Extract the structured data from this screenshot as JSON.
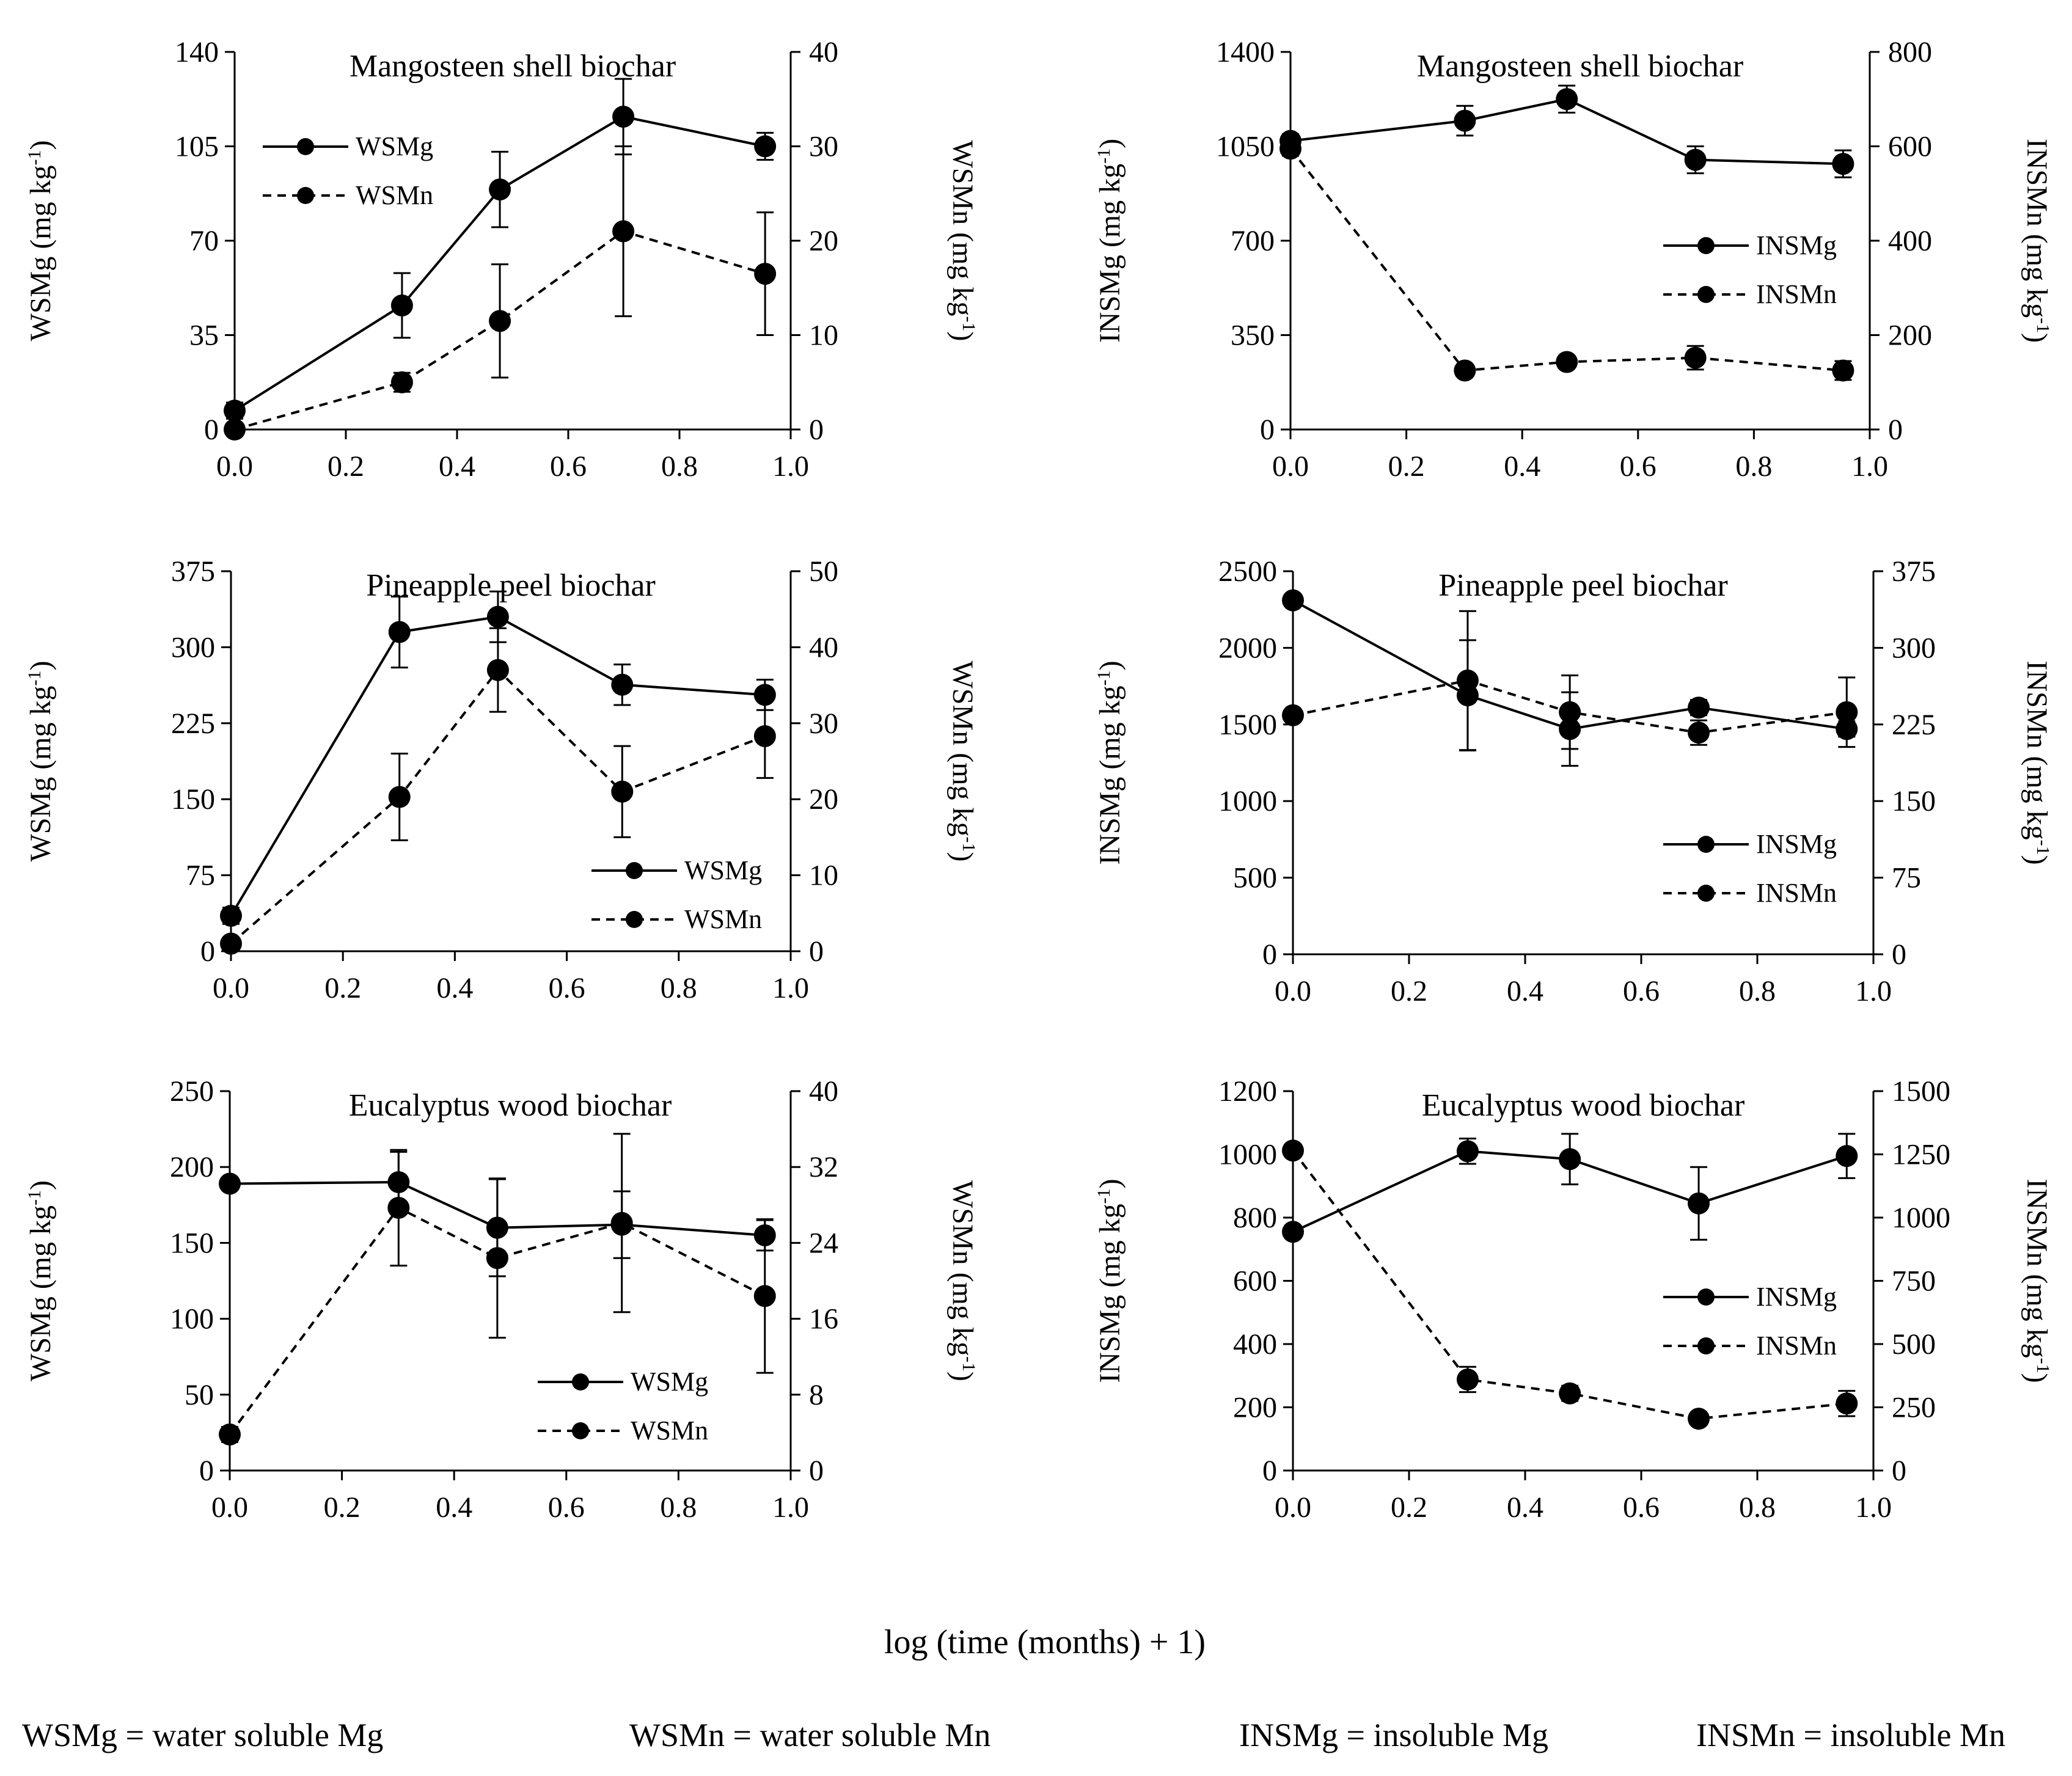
{
  "figure": {
    "xaxis_label": "log (time (months) + 1)",
    "abbreviations": [
      "WSMg = water soluble Mg",
      "WSMn = water soluble Mn",
      "INSMg = insoluble Mg",
      "INSMn = insoluble Mn"
    ],
    "colors": {
      "line": "#000000",
      "marker": "#000000",
      "background": "#ffffff"
    }
  },
  "chart_data": [
    {
      "type": "line",
      "title": "Mangosteen shell biochar",
      "xlabel": "log (time (months) + 1)",
      "ylabel": "WSMg (mg kg-1)",
      "y2label": "WSMn (mg kg-1)",
      "xlim": [
        0,
        1.0
      ],
      "ylim": [
        0,
        140
      ],
      "y2lim": [
        0,
        40
      ],
      "xticks": [
        "0.0",
        "0.2",
        "0.4",
        "0.6",
        "0.8",
        "1.0"
      ],
      "yticks": [
        "0",
        "35",
        "70",
        "105",
        "140"
      ],
      "y2ticks": [
        "0",
        "10",
        "20",
        "30",
        "40"
      ],
      "legend_position": "top-left",
      "x": [
        0,
        0.301,
        0.477,
        0.699,
        0.954
      ],
      "series": [
        {
          "name": "WSMg",
          "axis": "left",
          "style": "solid",
          "values": [
            7,
            46,
            89,
            116,
            105
          ],
          "errors": [
            3,
            12,
            14,
            14,
            5
          ]
        },
        {
          "name": "WSMn",
          "axis": "right",
          "style": "dashed",
          "values": [
            0,
            5,
            11.5,
            21,
            16.5
          ],
          "errors": [
            0.5,
            1,
            6,
            9,
            6.5
          ]
        }
      ]
    },
    {
      "type": "line",
      "title": "Mangosteen shell biochar",
      "xlabel": "log (time (months) + 1)",
      "ylabel": "INSMg (mg kg-1)",
      "y2label": "INSMn (mg kg-1)",
      "xlim": [
        0,
        1.0
      ],
      "ylim": [
        0,
        1400
      ],
      "y2lim": [
        0,
        800
      ],
      "xticks": [
        "0.0",
        "0.2",
        "0.4",
        "0.6",
        "0.8",
        "1.0"
      ],
      "yticks": [
        "0",
        "350",
        "700",
        "1050",
        "1400"
      ],
      "y2ticks": [
        "0",
        "200",
        "400",
        "600",
        "800"
      ],
      "legend_position": "center-right",
      "x": [
        0,
        0.301,
        0.477,
        0.699,
        0.954
      ],
      "series": [
        {
          "name": "INSMg",
          "axis": "left",
          "style": "solid",
          "values": [
            1070,
            1145,
            1225,
            1000,
            985
          ],
          "errors": [
            25,
            55,
            50,
            50,
            50
          ]
        },
        {
          "name": "INSMn",
          "axis": "right",
          "style": "dashed",
          "values": [
            595,
            125,
            143,
            152,
            125
          ],
          "errors": [
            15,
            10,
            10,
            25,
            20
          ]
        }
      ]
    },
    {
      "type": "line",
      "title": "Pineapple peel biochar",
      "xlabel": "log (time (months) + 1)",
      "ylabel": "WSMg (mg kg-1)",
      "y2label": "WSMn (mg kg-1)",
      "xlim": [
        0,
        1.0
      ],
      "ylim": [
        0,
        375
      ],
      "y2lim": [
        0,
        50
      ],
      "xticks": [
        "0.0",
        "0.2",
        "0.4",
        "0.6",
        "0.8",
        "1.0"
      ],
      "yticks": [
        "0",
        "75",
        "150",
        "225",
        "300",
        "375"
      ],
      "y2ticks": [
        "0",
        "10",
        "20",
        "30",
        "40",
        "50"
      ],
      "legend_position": "bottom-right",
      "x": [
        0,
        0.301,
        0.477,
        0.699,
        0.954
      ],
      "series": [
        {
          "name": "WSMg",
          "axis": "left",
          "style": "solid",
          "values": [
            35,
            315,
            330,
            263,
            253
          ],
          "errors": [
            8,
            35,
            25,
            20,
            15
          ]
        },
        {
          "name": "WSMn",
          "axis": "right",
          "style": "dashed",
          "values": [
            1,
            20.3,
            37,
            21,
            28.3
          ],
          "errors": [
            0.5,
            5.7,
            5.5,
            6,
            5.5
          ]
        }
      ]
    },
    {
      "type": "line",
      "title": "Pineapple peel biochar",
      "xlabel": "log (time (months) + 1)",
      "ylabel": "INSMg (mg kg-1)",
      "y2label": "INSMn (mg kg-1)",
      "xlim": [
        0,
        1.0
      ],
      "ylim": [
        0,
        2500
      ],
      "y2lim": [
        0,
        375
      ],
      "xticks": [
        "0.0",
        "0.2",
        "0.4",
        "0.6",
        "0.8",
        "1.0"
      ],
      "yticks": [
        "0",
        "500",
        "1000",
        "1500",
        "2000",
        "2500"
      ],
      "y2ticks": [
        "0",
        "75",
        "150",
        "225",
        "300",
        "375"
      ],
      "legend_position": "center-right",
      "x": [
        0,
        0.301,
        0.477,
        0.699,
        0.954
      ],
      "series": [
        {
          "name": "INSMg",
          "axis": "left",
          "style": "solid",
          "values": [
            2310,
            1690,
            1470,
            1610,
            1470
          ],
          "errors": [
            30,
            360,
            240,
            50,
            50
          ]
        },
        {
          "name": "INSMn",
          "axis": "right",
          "style": "dashed",
          "values": [
            234,
            268,
            237,
            217,
            237
          ],
          "errors": [
            5,
            68,
            36,
            12,
            34
          ]
        }
      ]
    },
    {
      "type": "line",
      "title": "Eucalyptus wood biochar",
      "xlabel": "log (time (months) + 1)",
      "ylabel": "WSMg (mg kg-1)",
      "y2label": "WSMn (mg kg-1)",
      "xlim": [
        0,
        1.0
      ],
      "ylim": [
        0,
        250
      ],
      "y2lim": [
        0,
        40
      ],
      "xticks": [
        "0.0",
        "0.2",
        "0.4",
        "0.6",
        "0.8",
        "1.0"
      ],
      "yticks": [
        "0",
        "50",
        "100",
        "150",
        "200",
        "250"
      ],
      "y2ticks": [
        "0",
        "8",
        "16",
        "24",
        "32",
        "40"
      ],
      "legend_position": "bottom-right",
      "x": [
        0,
        0.301,
        0.477,
        0.699,
        0.954
      ],
      "series": [
        {
          "name": "WSMg",
          "axis": "left",
          "style": "solid",
          "values": [
            189,
            190,
            160,
            162,
            155
          ],
          "errors": [
            4,
            20,
            32,
            22,
            10
          ]
        },
        {
          "name": "WSMn",
          "axis": "right",
          "style": "dashed",
          "values": [
            3.8,
            27.7,
            22.4,
            26.1,
            18.4
          ],
          "errors": [
            0.8,
            6.1,
            8.4,
            9.4,
            8.1
          ]
        }
      ]
    },
    {
      "type": "line",
      "title": "Eucalyptus wood biochar",
      "xlabel": "log (time (months) + 1)",
      "ylabel": "INSMg (mg kg-1)",
      "y2label": "INSMn (mg kg-1)",
      "xlim": [
        0,
        1.0
      ],
      "ylim": [
        0,
        1200
      ],
      "y2lim": [
        0,
        1500
      ],
      "xticks": [
        "0.0",
        "0.2",
        "0.4",
        "0.6",
        "0.8",
        "1.0"
      ],
      "yticks": [
        "0",
        "200",
        "400",
        "600",
        "800",
        "1000",
        "1200"
      ],
      "y2ticks": [
        "0",
        "250",
        "500",
        "750",
        "1000",
        "1250",
        "1500"
      ],
      "legend_position": "center-right",
      "x": [
        0,
        0.301,
        0.477,
        0.699,
        0.954
      ],
      "series": [
        {
          "name": "INSMg",
          "axis": "left",
          "style": "solid",
          "values": [
            755,
            1010,
            985,
            845,
            995
          ],
          "errors": [
            20,
            40,
            80,
            115,
            70
          ]
        },
        {
          "name": "INSMn",
          "axis": "right",
          "style": "dashed",
          "values": [
            1265,
            360,
            305,
            205,
            265
          ],
          "errors": [
            20,
            50,
            30,
            20,
            50
          ]
        }
      ]
    }
  ]
}
